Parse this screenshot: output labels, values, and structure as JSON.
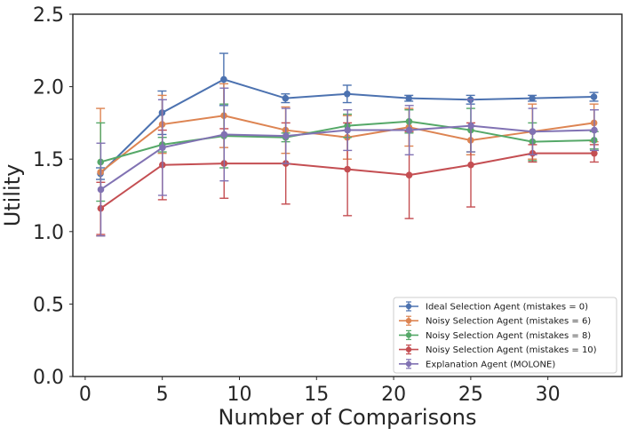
{
  "chart_data": {
    "type": "line",
    "title": "",
    "xlabel": "Number of Comparisons",
    "ylabel": "Utility",
    "xlim": [
      -0.8,
      34.8
    ],
    "ylim": [
      0.0,
      2.5
    ],
    "xticks": [
      0,
      5,
      10,
      15,
      20,
      25,
      30
    ],
    "yticks": [
      0.0,
      0.5,
      1.0,
      1.5,
      2.0,
      2.5
    ],
    "xtick_labels": [
      "0",
      "5",
      "10",
      "15",
      "20",
      "25",
      "30"
    ],
    "ytick_labels": [
      "0.0",
      "0.5",
      "1.0",
      "1.5",
      "2.0",
      "2.5"
    ],
    "grid": false,
    "legend_position": "lower-right",
    "x": [
      1,
      5,
      9,
      13,
      17,
      21,
      25,
      29,
      33
    ],
    "series": [
      {
        "name": "Ideal Selection Agent (mistakes = 0)",
        "color": "#4c72b0",
        "values": [
          1.4,
          1.82,
          2.05,
          1.92,
          1.95,
          1.92,
          1.91,
          1.92,
          1.93
        ],
        "errors": [
          0.04,
          0.15,
          0.18,
          0.03,
          0.06,
          0.02,
          0.03,
          0.02,
          0.03
        ]
      },
      {
        "name": "Noisy Selection Agent (mistakes = 6)",
        "color": "#dd8452",
        "values": [
          1.41,
          1.74,
          1.8,
          1.7,
          1.65,
          1.72,
          1.63,
          1.69,
          1.75
        ],
        "errors": [
          0.44,
          0.2,
          0.22,
          0.16,
          0.15,
          0.13,
          0.1,
          0.19,
          0.13
        ]
      },
      {
        "name": "Noisy Selection Agent (mistakes = 8)",
        "color": "#55a868",
        "values": [
          1.48,
          1.6,
          1.66,
          1.65,
          1.73,
          1.76,
          1.7,
          1.62,
          1.63
        ],
        "errors": [
          0.27,
          0.05,
          0.22,
          0.03,
          0.08,
          0.08,
          0.15,
          0.13,
          0.06
        ]
      },
      {
        "name": "Noisy Selection Agent (mistakes = 10)",
        "color": "#c44e52",
        "values": [
          1.16,
          1.46,
          1.47,
          1.47,
          1.43,
          1.39,
          1.46,
          1.54,
          1.54
        ],
        "errors": [
          0.18,
          0.24,
          0.24,
          0.28,
          0.32,
          0.3,
          0.29,
          0.06,
          0.06
        ]
      },
      {
        "name": "Explanation Agent (MOLONE)",
        "color": "#8172b3",
        "values": [
          1.29,
          1.58,
          1.67,
          1.66,
          1.7,
          1.7,
          1.73,
          1.69,
          1.7
        ],
        "errors": [
          0.32,
          0.33,
          0.32,
          0.19,
          0.14,
          0.17,
          0.18,
          0.16,
          0.14
        ]
      }
    ]
  }
}
